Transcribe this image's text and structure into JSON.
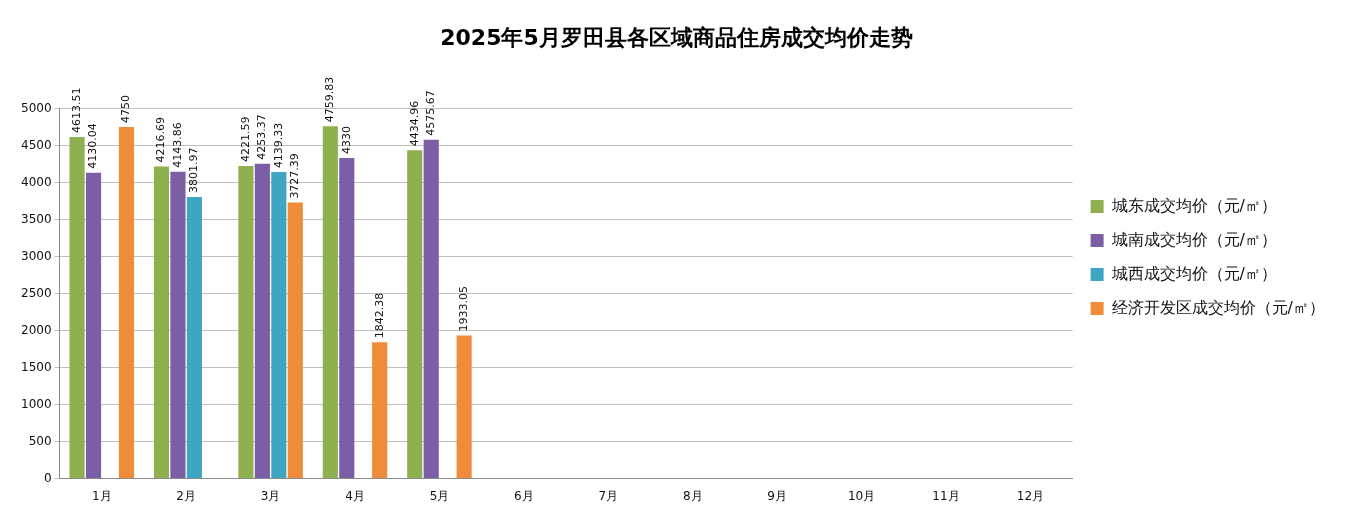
{
  "chart_data": {
    "type": "bar",
    "title": "2025年5月罗田县各区域商品住房成交均价走势",
    "categories": [
      "1月",
      "2月",
      "3月",
      "4月",
      "5月",
      "6月",
      "7月",
      "8月",
      "9月",
      "10月",
      "11月",
      "12月"
    ],
    "series": [
      {
        "name": "城东成交均价（元/㎡）",
        "color": "#8fb04f",
        "values": [
          4613.51,
          4216.69,
          4221.59,
          4759.83,
          4434.96,
          null,
          null,
          null,
          null,
          null,
          null,
          null
        ]
      },
      {
        "name": "城南成交均价（元/㎡）",
        "color": "#7b5ea6",
        "values": [
          4130.04,
          4143.86,
          4253.37,
          4330,
          4575.67,
          null,
          null,
          null,
          null,
          null,
          null,
          null
        ]
      },
      {
        "name": "城西成交均价（元/㎡）",
        "color": "#3ea6c2",
        "values": [
          null,
          3801.97,
          4139.33,
          null,
          null,
          null,
          null,
          null,
          null,
          null,
          null,
          null
        ]
      },
      {
        "name": "经济开发区成交均价（元/㎡）",
        "color": "#ee8c3a",
        "values": [
          4750,
          null,
          3727.39,
          1842.38,
          1933.05,
          null,
          null,
          null,
          null,
          null,
          null,
          null
        ]
      }
    ],
    "ylim": [
      0,
      5000
    ],
    "yticks": [
      0,
      500,
      1000,
      1500,
      2000,
      2500,
      3000,
      3500,
      4000,
      4500,
      5000
    ],
    "grid": "y",
    "legend": "right",
    "data_labels": true
  }
}
